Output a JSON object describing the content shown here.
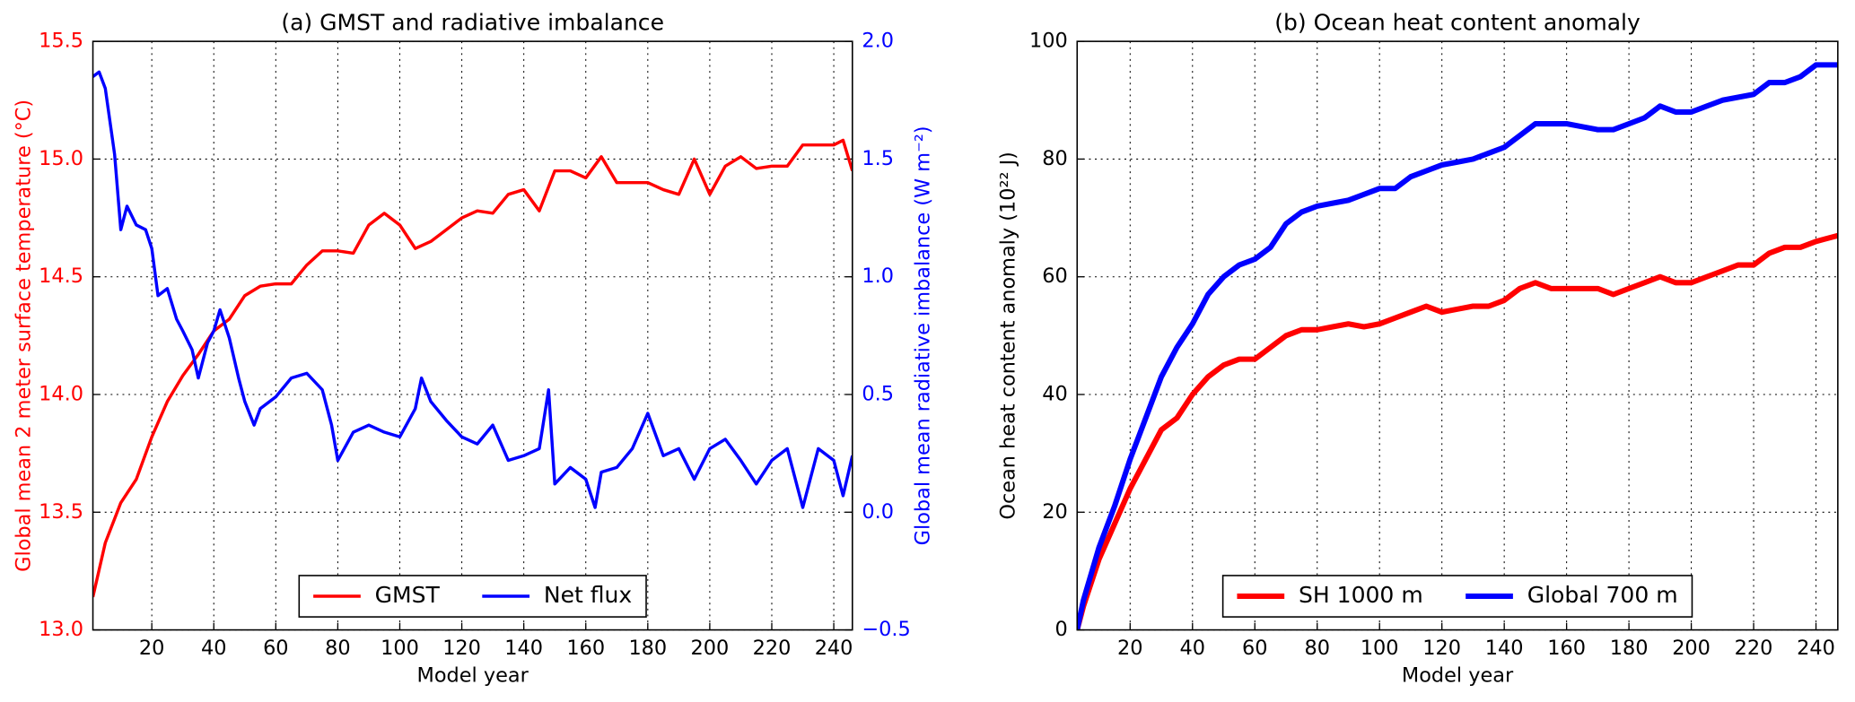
{
  "chart_data": [
    {
      "type": "line",
      "title": "(a) GMST and radiative imbalance",
      "xlabel": "Model year",
      "ylabel": "Global mean 2 meter surface temperature (°C)",
      "y2label": "Global mean radiative imbalance (W m⁻²)",
      "xlim": [
        1,
        246
      ],
      "xticks": [
        20,
        40,
        60,
        80,
        100,
        120,
        140,
        160,
        180,
        200,
        220,
        240
      ],
      "ylim": [
        13.0,
        15.5
      ],
      "yticks": [
        {
          "value": 13,
          "label": "13.0"
        },
        13.5,
        {
          "value": 14,
          "label": "14.0"
        },
        14.5,
        {
          "value": 15,
          "label": "15.0"
        },
        15.5
      ],
      "y2lim": [
        -0.5,
        2.0
      ],
      "y2ticks": [
        {
          "value": -0.5,
          "label": "−0.5"
        },
        {
          "value": 0,
          "label": "0.0"
        },
        0.5,
        {
          "value": 1,
          "label": "1.0"
        },
        1.5,
        {
          "value": 2,
          "label": "2.0"
        }
      ],
      "grid": true,
      "legend": "lower center",
      "series": [
        {
          "name": "GMST",
          "color": "#ff0000",
          "x": [
            1,
            5,
            10,
            15,
            20,
            25,
            30,
            35,
            40,
            45,
            50,
            55,
            60,
            65,
            70,
            75,
            80,
            85,
            90,
            95,
            100,
            105,
            110,
            115,
            120,
            125,
            130,
            135,
            140,
            145,
            150,
            155,
            160,
            165,
            170,
            175,
            180,
            185,
            190,
            195,
            200,
            205,
            210,
            215,
            220,
            225,
            230,
            235,
            240,
            243,
            246
          ],
          "values": [
            13.14,
            13.37,
            13.54,
            13.64,
            13.82,
            13.97,
            14.08,
            14.17,
            14.27,
            14.32,
            14.42,
            14.46,
            14.47,
            14.47,
            14.55,
            14.61,
            14.61,
            14.6,
            14.72,
            14.77,
            14.72,
            14.62,
            14.65,
            14.7,
            14.75,
            14.78,
            14.77,
            14.85,
            14.87,
            14.78,
            14.95,
            14.95,
            14.92,
            15.01,
            14.9,
            14.9,
            14.9,
            14.87,
            14.85,
            15.0,
            14.85,
            14.97,
            15.01,
            14.96,
            14.97,
            14.97,
            15.06,
            15.06,
            15.06,
            15.08,
            14.95
          ]
        },
        {
          "name": "Net flux",
          "color": "#0000ff",
          "axis": "y2",
          "x": [
            1,
            3,
            5,
            8,
            10,
            12,
            15,
            18,
            20,
            22,
            25,
            28,
            30,
            33,
            35,
            38,
            40,
            42,
            45,
            48,
            50,
            53,
            55,
            60,
            65,
            70,
            75,
            78,
            80,
            85,
            90,
            95,
            100,
            105,
            107,
            110,
            115,
            120,
            125,
            130,
            135,
            140,
            145,
            148,
            150,
            155,
            160,
            163,
            165,
            170,
            175,
            180,
            185,
            190,
            195,
            200,
            205,
            210,
            215,
            220,
            225,
            230,
            235,
            240,
            243,
            246
          ],
          "values": [
            1.85,
            1.87,
            1.8,
            1.52,
            1.2,
            1.3,
            1.22,
            1.2,
            1.12,
            0.92,
            0.95,
            0.82,
            0.77,
            0.69,
            0.57,
            0.72,
            0.77,
            0.86,
            0.74,
            0.57,
            0.47,
            0.37,
            0.44,
            0.49,
            0.57,
            0.59,
            0.52,
            0.37,
            0.22,
            0.34,
            0.37,
            0.34,
            0.32,
            0.44,
            0.57,
            0.47,
            0.39,
            0.32,
            0.29,
            0.37,
            0.22,
            0.24,
            0.27,
            0.52,
            0.12,
            0.19,
            0.14,
            0.02,
            0.17,
            0.19,
            0.27,
            0.42,
            0.24,
            0.27,
            0.14,
            0.27,
            0.31,
            0.22,
            0.12,
            0.22,
            0.27,
            0.02,
            0.27,
            0.22,
            0.07,
            0.24
          ]
        }
      ]
    },
    {
      "type": "line",
      "title": "(b) Ocean heat content anomaly",
      "xlabel": "Model year",
      "ylabel": "Ocean heat content anomaly (10²² J)",
      "xlim": [
        3,
        247
      ],
      "xticks": [
        20,
        40,
        60,
        80,
        100,
        120,
        140,
        160,
        180,
        200,
        220,
        240
      ],
      "ylim": [
        0,
        100
      ],
      "yticks": [
        0,
        20,
        40,
        60,
        80,
        100
      ],
      "grid": true,
      "legend": "lower center",
      "x": [
        3,
        5,
        10,
        15,
        20,
        25,
        30,
        35,
        40,
        45,
        50,
        55,
        60,
        65,
        70,
        75,
        80,
        85,
        90,
        95,
        100,
        105,
        110,
        115,
        120,
        125,
        130,
        135,
        140,
        145,
        150,
        155,
        160,
        165,
        170,
        175,
        180,
        185,
        190,
        195,
        200,
        205,
        210,
        215,
        220,
        225,
        230,
        235,
        240,
        247
      ],
      "series": [
        {
          "name": "SH 1000 m",
          "color": "#ff0000",
          "values": [
            0,
            4,
            12,
            18,
            24,
            29,
            34,
            36,
            40,
            43,
            45,
            46,
            46,
            48,
            50,
            51,
            51,
            51.5,
            52,
            51.5,
            52,
            53,
            54,
            55,
            54,
            54.5,
            55,
            55,
            56,
            58,
            59,
            58,
            58,
            58,
            58,
            57,
            58,
            59,
            60,
            59,
            59,
            60,
            61,
            62,
            62,
            64,
            65,
            65,
            66,
            67
          ]
        },
        {
          "name": "Global 700 m",
          "color": "#0000ff",
          "values": [
            0,
            5,
            14,
            21,
            29,
            36,
            43,
            48,
            52,
            57,
            60,
            62,
            63,
            65,
            69,
            71,
            72,
            72.5,
            73,
            74,
            75,
            75,
            77,
            78,
            79,
            79.5,
            80,
            81,
            82,
            84,
            86,
            86,
            86,
            85.5,
            85,
            85,
            86,
            87,
            89,
            88,
            88,
            89,
            90,
            90.5,
            91,
            93,
            93,
            94,
            96,
            96
          ]
        }
      ]
    }
  ]
}
